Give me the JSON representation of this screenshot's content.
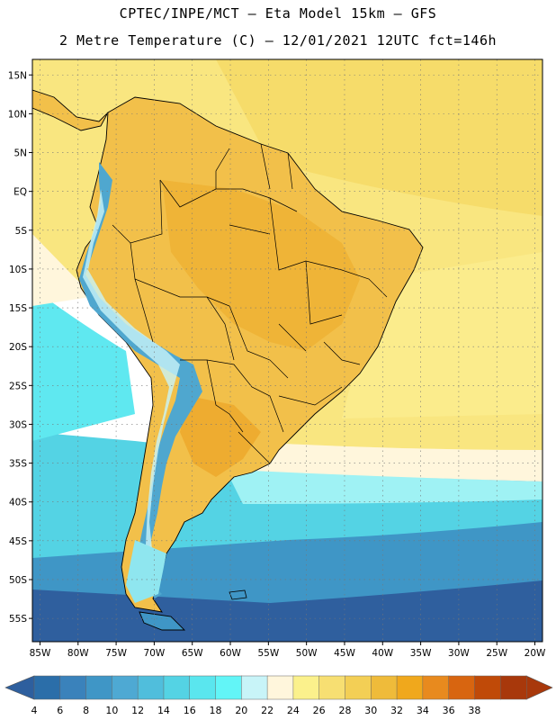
{
  "title": {
    "line1": "CPTEC/INPE/MCT –   Eta Model 15km – GFS",
    "line2": "2 Metre Temperature (C) – 12/01/2021 12UTC fct=146h"
  },
  "map": {
    "region": "South America",
    "lon_range": [
      -86,
      -19
    ],
    "lat_range": [
      -58,
      17
    ],
    "lat_ticks": [
      "15N",
      "10N",
      "5N",
      "EQ",
      "5S",
      "10S",
      "15S",
      "20S",
      "25S",
      "30S",
      "35S",
      "40S",
      "45S",
      "50S",
      "55S"
    ],
    "lat_values": [
      15,
      10,
      5,
      0,
      -5,
      -10,
      -15,
      -20,
      -25,
      -30,
      -35,
      -40,
      -45,
      -50,
      -55
    ],
    "lon_ticks": [
      "85W",
      "80W",
      "75W",
      "70W",
      "65W",
      "60W",
      "55W",
      "50W",
      "45W",
      "40W",
      "35W",
      "30W",
      "25W",
      "20W"
    ],
    "lon_values": [
      -85,
      -80,
      -75,
      -70,
      -65,
      -60,
      -55,
      -50,
      -45,
      -40,
      -35,
      -30,
      -25,
      -20
    ]
  },
  "colorbar": {
    "labels": [
      "4",
      "6",
      "8",
      "10",
      "12",
      "14",
      "16",
      "18",
      "20",
      "22",
      "24",
      "26",
      "28",
      "30",
      "32",
      "34",
      "36",
      "38"
    ],
    "colors": [
      "#2b6ea9",
      "#3a82bb",
      "#3f96c6",
      "#4ea9d3",
      "#50bedc",
      "#54d3e4",
      "#5ae6ee",
      "#62f5f7",
      "#c8f4f8",
      "#fff6dc",
      "#fbf18c",
      "#f7df72",
      "#f3cf55",
      "#efbb3a",
      "#f0a81c",
      "#e88a1e",
      "#d86510",
      "#c04a08",
      "#a8380b"
    ],
    "left_arrow": "#2e5f9e",
    "right_arrow": "#a8380b"
  },
  "legend_colors": {
    "ocean_deep": "#2f5f9e",
    "ocean_mid": "#3f96c6",
    "ocean_cool": "#54d3e4",
    "ocean_cyan": "#5fe8f0",
    "ocean_pale": "#fff6dc",
    "ocean_warm": "#fbeb84",
    "ocean_yellow": "#f8df6c",
    "land_hot": "#efb437",
    "land_warm": "#f2c04a",
    "andes_cool": "#4fa7cf",
    "andes_ice": "#c8f4f8"
  }
}
